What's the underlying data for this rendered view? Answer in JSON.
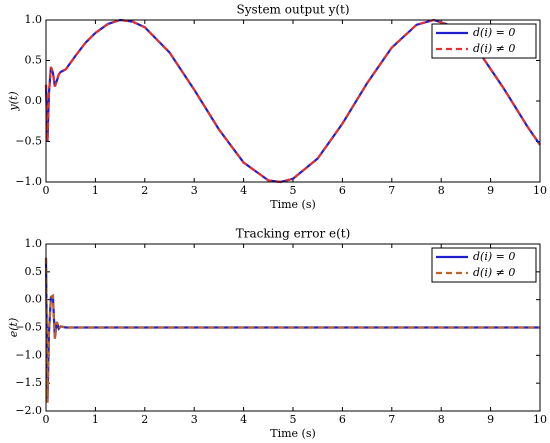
{
  "chart_data": [
    {
      "type": "line",
      "title": "System output y(t)",
      "xlabel": "Time (s)",
      "ylabel": "y(t)",
      "x": [
        0,
        0.03,
        0.06,
        0.1,
        0.14,
        0.18,
        0.22,
        0.26,
        0.3,
        0.4,
        0.6,
        0.8,
        1,
        1.25,
        1.5,
        1.75,
        2,
        2.5,
        3,
        3.5,
        4,
        4.5,
        4.75,
        5,
        5.5,
        6,
        6.5,
        7,
        7.5,
        7.85,
        8.25,
        8.75,
        9.25,
        9.75,
        10
      ],
      "series": [
        {
          "name": "d(i) = 0",
          "color": "#1f1fd0",
          "dash": false,
          "values": [
            0.2,
            -0.5,
            0.1,
            0.42,
            0.35,
            0.18,
            0.25,
            0.33,
            0.36,
            0.39,
            0.56,
            0.72,
            0.84,
            0.95,
            1.0,
            0.98,
            0.91,
            0.6,
            0.14,
            -0.35,
            -0.76,
            -0.98,
            -1.0,
            -0.96,
            -0.71,
            -0.28,
            0.22,
            0.66,
            0.94,
            1.0,
            0.92,
            0.62,
            0.17,
            -0.32,
            -0.54
          ]
        },
        {
          "name": "d(i) ≠ 0",
          "color": "#e03030",
          "dash": true,
          "values": [
            0.2,
            -0.5,
            0.1,
            0.42,
            0.35,
            0.18,
            0.25,
            0.33,
            0.36,
            0.39,
            0.56,
            0.72,
            0.84,
            0.95,
            1.0,
            0.98,
            0.91,
            0.6,
            0.14,
            -0.35,
            -0.76,
            -0.98,
            -1.0,
            -0.96,
            -0.71,
            -0.28,
            0.22,
            0.66,
            0.94,
            1.0,
            0.92,
            0.62,
            0.17,
            -0.32,
            -0.54
          ]
        }
      ],
      "xlim": [
        0,
        10
      ],
      "xticks": [
        0,
        1,
        2,
        3,
        4,
        5,
        6,
        7,
        8,
        9,
        10
      ],
      "ylim": [
        -1,
        1
      ],
      "yticks": [
        {
          "value": -1,
          "label": "−1.0"
        },
        {
          "value": -0.5,
          "label": "−0.5"
        },
        {
          "value": 0,
          "label": "0.0"
        },
        {
          "value": 0.5,
          "label": "0.5"
        },
        {
          "value": 1,
          "label": "1.0"
        }
      ],
      "legend": "upper right"
    },
    {
      "type": "line",
      "title": "Tracking error e(t)",
      "xlabel": "Time (s)",
      "ylabel": "e(t)",
      "x": [
        0,
        0.03,
        0.06,
        0.1,
        0.14,
        0.18,
        0.22,
        0.26,
        0.3,
        0.4,
        0.6,
        0.8,
        1,
        1.25,
        1.5,
        1.75,
        2,
        2.5,
        3,
        3.5,
        4,
        4.5,
        4.75,
        5,
        5.5,
        6,
        6.5,
        7,
        7.5,
        7.85,
        8.25,
        8.75,
        9.25,
        9.75,
        10
      ],
      "series": [
        {
          "name": "d(i) = 0",
          "color": "#1f1fd0",
          "dash": false,
          "values": [
            0.75,
            -1.85,
            -0.6,
            0.05,
            0.07,
            -0.7,
            -0.4,
            -0.52,
            -0.48,
            -0.5,
            -0.5,
            -0.5,
            -0.5,
            -0.5,
            -0.5,
            -0.5,
            -0.5,
            -0.5,
            -0.5,
            -0.5,
            -0.5,
            -0.5,
            -0.5,
            -0.5,
            -0.5,
            -0.5,
            -0.5,
            -0.5,
            -0.5,
            -0.5,
            -0.5,
            -0.5,
            -0.5,
            -0.5,
            -0.5
          ]
        },
        {
          "name": "d(i) ≠ 0",
          "color": "#b8642a",
          "dash": true,
          "values": [
            0.75,
            -1.85,
            -0.6,
            0.05,
            0.07,
            -0.7,
            -0.4,
            -0.52,
            -0.48,
            -0.5,
            -0.5,
            -0.5,
            -0.5,
            -0.5,
            -0.5,
            -0.5,
            -0.5,
            -0.5,
            -0.5,
            -0.5,
            -0.5,
            -0.5,
            -0.5,
            -0.5,
            -0.5,
            -0.5,
            -0.5,
            -0.5,
            -0.5,
            -0.5,
            -0.5,
            -0.5,
            -0.5,
            -0.5,
            -0.5
          ]
        }
      ],
      "xlim": [
        0,
        10
      ],
      "xticks": [
        0,
        1,
        2,
        3,
        4,
        5,
        6,
        7,
        8,
        9,
        10
      ],
      "ylim": [
        -2,
        1
      ],
      "yticks": [
        {
          "value": -2,
          "label": "−2.0"
        },
        {
          "value": -1.5,
          "label": "−1.5"
        },
        {
          "value": -1,
          "label": "−1.0"
        },
        {
          "value": -0.5,
          "label": "−0.5"
        },
        {
          "value": 0,
          "label": "0.0"
        },
        {
          "value": 0.5,
          "label": "0.5"
        },
        {
          "value": 1,
          "label": "1.0"
        }
      ],
      "legend": "upper right"
    }
  ]
}
